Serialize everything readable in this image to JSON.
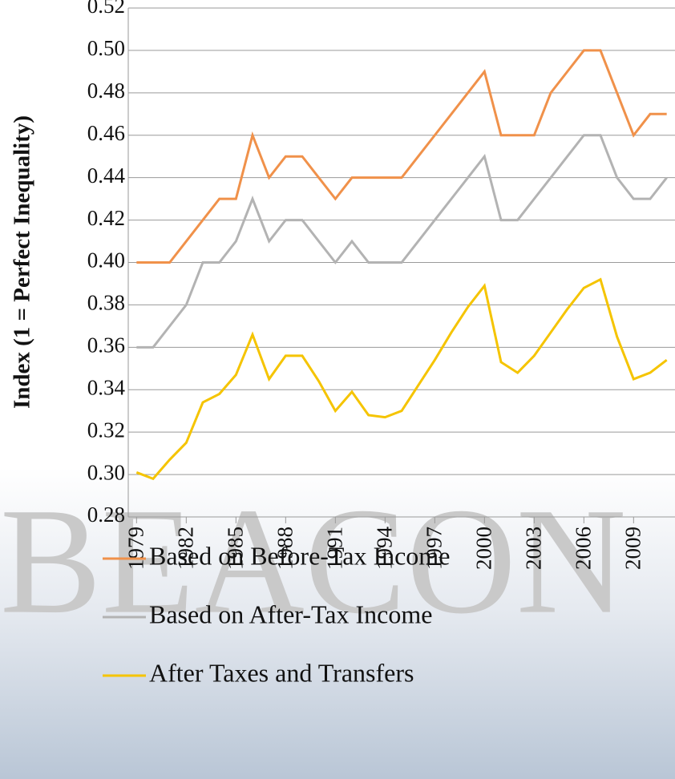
{
  "chart_data": {
    "type": "line",
    "watermark": "BEACON",
    "y_label": "Index (1 = Perfect Inequality)",
    "x": [
      1979,
      1980,
      1981,
      1982,
      1983,
      1984,
      1985,
      1986,
      1987,
      1988,
      1989,
      1990,
      1991,
      1992,
      1993,
      1994,
      1995,
      1996,
      1997,
      1998,
      1999,
      2000,
      2001,
      2002,
      2003,
      2004,
      2005,
      2006,
      2007,
      2008,
      2009,
      2010,
      2011
    ],
    "series": [
      {
        "name": "Based on Before-Tax Income",
        "color": "#f0914a",
        "values": [
          0.4,
          0.4,
          0.4,
          0.41,
          0.42,
          0.43,
          0.43,
          0.46,
          0.44,
          0.45,
          0.45,
          0.44,
          0.43,
          0.44,
          0.44,
          0.44,
          0.44,
          0.45,
          0.46,
          0.47,
          0.48,
          0.49,
          0.46,
          0.46,
          0.46,
          0.48,
          0.49,
          0.5,
          0.5,
          0.48,
          0.46,
          0.47,
          0.47
        ]
      },
      {
        "name": "Based on After-Tax Income",
        "color": "#b3b3b3",
        "values": [
          0.36,
          0.36,
          0.37,
          0.38,
          0.4,
          0.4,
          0.41,
          0.43,
          0.41,
          0.42,
          0.42,
          0.41,
          0.4,
          0.41,
          0.4,
          0.4,
          0.4,
          0.41,
          0.42,
          0.43,
          0.44,
          0.45,
          0.42,
          0.42,
          0.43,
          0.44,
          0.45,
          0.46,
          0.46,
          0.44,
          0.43,
          0.43,
          0.44
        ]
      },
      {
        "name": "After Taxes and Transfers",
        "color": "#f5c400",
        "values": [
          0.301,
          0.298,
          0.307,
          0.315,
          0.334,
          0.338,
          0.347,
          0.366,
          0.345,
          0.356,
          0.356,
          0.344,
          0.33,
          0.339,
          0.328,
          0.327,
          0.33,
          0.342,
          0.354,
          0.367,
          0.379,
          0.389,
          0.353,
          0.348,
          0.356,
          0.367,
          0.378,
          0.388,
          0.392,
          0.365,
          0.345,
          0.348,
          0.354
        ]
      }
    ],
    "xlim": [
      1978.5,
      2011.5
    ],
    "xticks": [
      1979,
      1982,
      1985,
      1988,
      1991,
      1994,
      1997,
      2000,
      2003,
      2006,
      2009
    ],
    "ylim": [
      0.28,
      0.52
    ],
    "yticks": [
      0.28,
      {
        "value": 0.3,
        "label": "0.30"
      },
      0.32,
      0.34,
      0.36,
      0.38,
      {
        "value": 0.4,
        "label": "0.40"
      },
      0.42,
      0.44,
      0.46,
      0.48,
      {
        "value": 0.5,
        "label": "0.50"
      },
      0.52
    ],
    "grid": true
  }
}
